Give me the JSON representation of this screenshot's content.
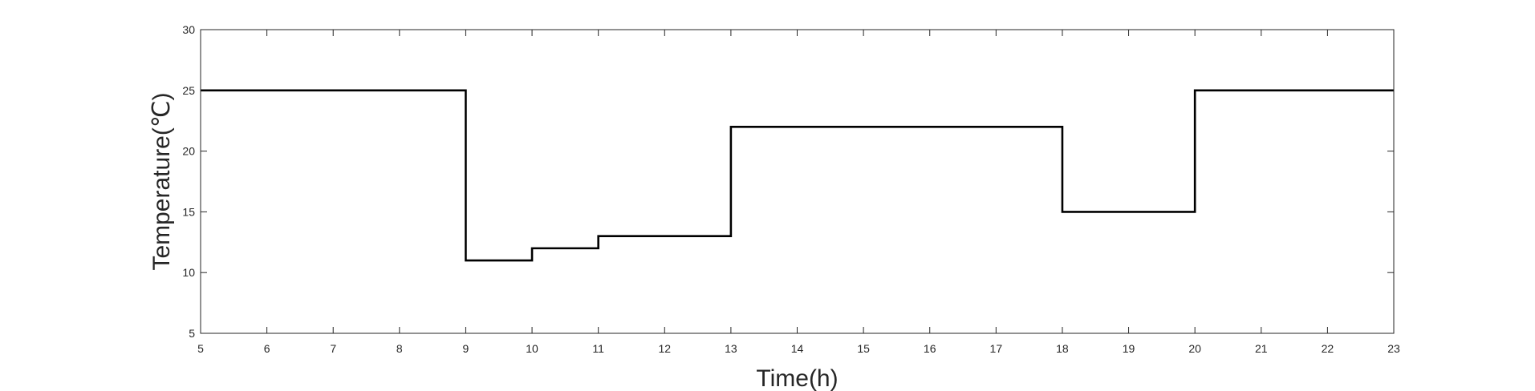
{
  "chart_data": {
    "type": "line",
    "step": true,
    "title": "",
    "xlabel": "Time(h)",
    "ylabel": "Temperature(℃)",
    "xlim": [
      5,
      23
    ],
    "ylim": [
      5,
      30
    ],
    "xticks": [
      5,
      6,
      7,
      8,
      9,
      10,
      11,
      12,
      13,
      14,
      15,
      16,
      17,
      18,
      19,
      20,
      21,
      22,
      23
    ],
    "yticks": [
      5,
      10,
      15,
      20,
      25,
      30
    ],
    "grid": false,
    "line_color": "#000000",
    "x": [
      5,
      9,
      9,
      10,
      10,
      11,
      11,
      13,
      13,
      18,
      18,
      20,
      20,
      23
    ],
    "y": [
      25,
      25,
      11,
      11,
      12,
      12,
      13,
      13,
      22,
      22,
      15,
      15,
      25,
      25
    ]
  }
}
